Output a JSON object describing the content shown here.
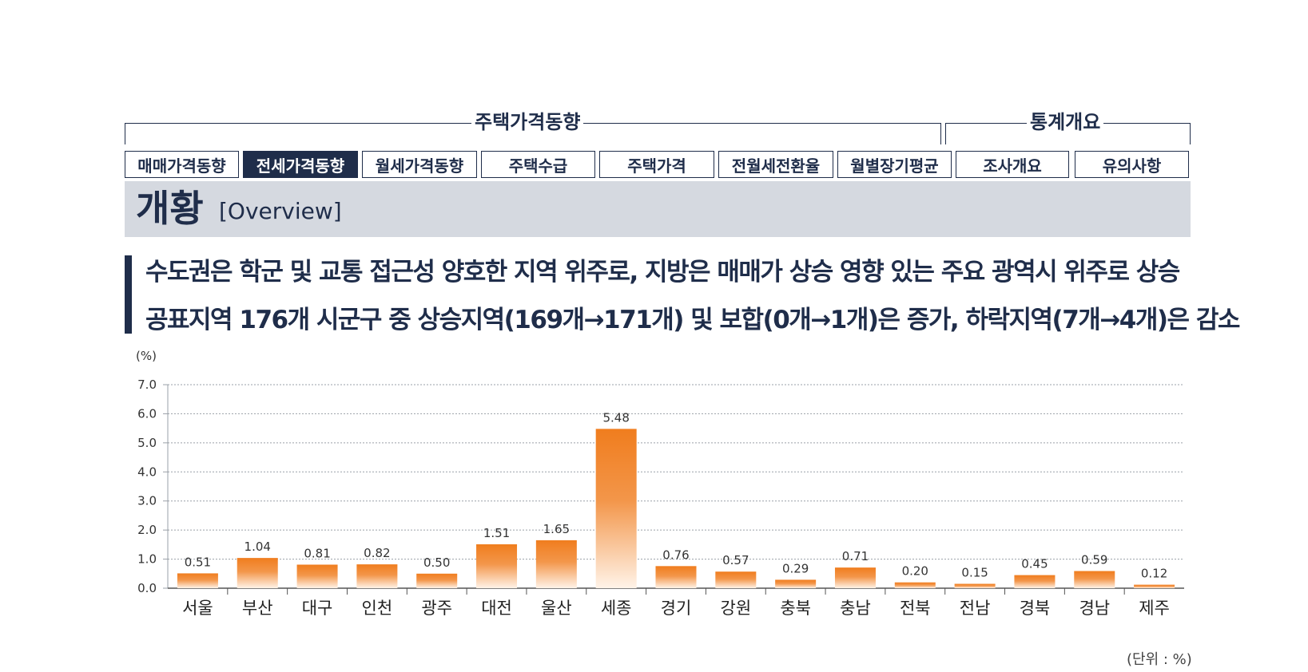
{
  "nav": {
    "groups": [
      {
        "label": "주택가격동향"
      },
      {
        "label": "통계개요"
      }
    ],
    "tabs": [
      {
        "label": "매매가격동향",
        "active": false
      },
      {
        "label": "전세가격동향",
        "active": true
      },
      {
        "label": "월세가격동향",
        "active": false
      },
      {
        "label": "주택수급",
        "active": false
      },
      {
        "label": "주택가격",
        "active": false
      },
      {
        "label": "전월세전환율",
        "active": false
      },
      {
        "label": "월별장기평균",
        "active": false
      },
      {
        "label": "조사개요",
        "active": false
      },
      {
        "label": "유의사항",
        "active": false
      }
    ]
  },
  "overview": {
    "title": "개황",
    "subtitle": "[Overview]"
  },
  "headline": {
    "line1": "수도권은 학군 및 교통 접근성 양호한 지역 위주로, 지방은 매매가 상승 영향 있는 주요 광역시 위주로 상승",
    "line2": "공표지역 176개 시군구 중 상승지역(169개→171개) 및 보합(0개→1개)은 증가, 하락지역(7개→4개)은 감소"
  },
  "units": {
    "top": "(%)",
    "bottom": "(단위 : %)"
  },
  "colors": {
    "navy": "#1f2d4a",
    "bar_top": "#f07d1e",
    "bar_bottom": "#fff3e8",
    "panel": "#d5d9e0"
  },
  "chart_data": {
    "type": "bar",
    "categories": [
      "서울",
      "부산",
      "대구",
      "인천",
      "광주",
      "대전",
      "울산",
      "세종",
      "경기",
      "강원",
      "충북",
      "충남",
      "전북",
      "전남",
      "경북",
      "경남",
      "제주"
    ],
    "values": [
      0.51,
      1.04,
      0.81,
      0.82,
      0.5,
      1.51,
      1.65,
      5.48,
      0.76,
      0.57,
      0.29,
      0.71,
      0.2,
      0.15,
      0.45,
      0.59,
      0.12
    ],
    "value_labels": [
      "0.51",
      "1.04",
      "0.81",
      "0.82",
      "0.50",
      "1.51",
      "1.65",
      "5.48",
      "0.76",
      "0.57",
      "0.29",
      "0.71",
      "0.20",
      "0.15",
      "0.45",
      "0.59",
      "0.12"
    ],
    "yticks": [
      "0.0",
      "1.0",
      "2.0",
      "3.0",
      "4.0",
      "5.0",
      "6.0",
      "7.0"
    ],
    "ylim": [
      0,
      7
    ],
    "ylabel": "(%)",
    "grid": true,
    "legend": false
  }
}
